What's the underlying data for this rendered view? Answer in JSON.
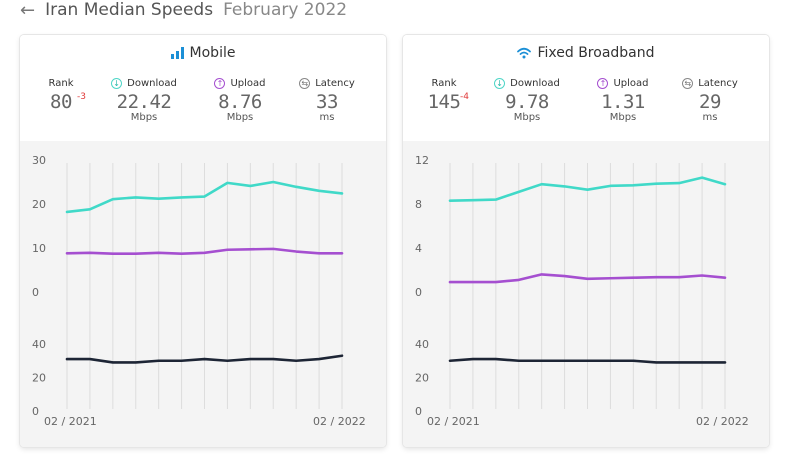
{
  "header": {
    "title": "Iran Median Speeds",
    "date": "February 2022"
  },
  "colors": {
    "download": "#40d9c8",
    "upload": "#a54fd0",
    "latency": "#1d2535",
    "accent_blue": "#1b8fd6"
  },
  "cards": [
    {
      "id": "mobile",
      "title": "Mobile",
      "icon": "signal-bars-icon",
      "rank_label": "Rank",
      "rank": "80",
      "rank_change": "-3",
      "download_label": "Download",
      "download": "22.42",
      "download_unit": "Mbps",
      "upload_label": "Upload",
      "upload": "8.76",
      "upload_unit": "Mbps",
      "latency_label": "Latency",
      "latency": "33",
      "latency_unit": "ms",
      "x_start": "02 / 2021",
      "x_end": "02 / 2022"
    },
    {
      "id": "fixed",
      "title": "Fixed Broadband",
      "icon": "wifi-icon",
      "rank_label": "Rank",
      "rank": "145",
      "rank_change": "-4",
      "download_label": "Download",
      "download": "9.78",
      "download_unit": "Mbps",
      "upload_label": "Upload",
      "upload": "1.31",
      "upload_unit": "Mbps",
      "latency_label": "Latency",
      "latency": "29",
      "latency_unit": "ms",
      "x_start": "02 / 2021",
      "x_end": "02 / 2022"
    }
  ],
  "chart_data": [
    {
      "type": "line",
      "panel": "Mobile speeds",
      "x": [
        "02/2021",
        "03/2021",
        "04/2021",
        "05/2021",
        "06/2021",
        "07/2021",
        "08/2021",
        "09/2021",
        "10/2021",
        "11/2021",
        "12/2021",
        "01/2022",
        "02/2022"
      ],
      "series": [
        {
          "name": "Download",
          "values": [
            18.2,
            18.8,
            21.1,
            21.5,
            21.2,
            21.5,
            21.7,
            24.8,
            24.1,
            25.0,
            23.9,
            23.0,
            22.4
          ]
        },
        {
          "name": "Upload",
          "values": [
            8.8,
            8.9,
            8.7,
            8.7,
            8.9,
            8.7,
            8.9,
            9.6,
            9.7,
            9.8,
            9.2,
            8.8,
            8.8
          ]
        }
      ],
      "ylim": [
        0,
        30
      ],
      "yticks": [
        0,
        10,
        20,
        30
      ]
    },
    {
      "type": "line",
      "panel": "Mobile latency",
      "x": [
        "02/2021",
        "03/2021",
        "04/2021",
        "05/2021",
        "06/2021",
        "07/2021",
        "08/2021",
        "09/2021",
        "10/2021",
        "11/2021",
        "12/2021",
        "01/2022",
        "02/2022"
      ],
      "series": [
        {
          "name": "Latency",
          "values": [
            31,
            31,
            29,
            29,
            30,
            30,
            31,
            30,
            31,
            31,
            30,
            31,
            33
          ]
        }
      ],
      "ylim": [
        0,
        40
      ],
      "yticks": [
        0,
        20,
        40
      ]
    },
    {
      "type": "line",
      "panel": "Fixed Broadband speeds",
      "x": [
        "02/2021",
        "03/2021",
        "04/2021",
        "05/2021",
        "06/2021",
        "07/2021",
        "08/2021",
        "09/2021",
        "10/2021",
        "11/2021",
        "12/2021",
        "01/2022",
        "02/2022"
      ],
      "series": [
        {
          "name": "Download",
          "values": [
            8.3,
            8.35,
            8.4,
            9.1,
            9.8,
            9.6,
            9.3,
            9.65,
            9.7,
            9.85,
            9.9,
            10.4,
            9.8
          ]
        },
        {
          "name": "Upload",
          "values": [
            0.9,
            0.9,
            0.9,
            1.1,
            1.6,
            1.45,
            1.2,
            1.25,
            1.3,
            1.35,
            1.35,
            1.5,
            1.3
          ]
        }
      ],
      "ylim": [
        0,
        12
      ],
      "yticks": [
        0,
        4,
        8,
        12
      ]
    },
    {
      "type": "line",
      "panel": "Fixed Broadband latency",
      "x": [
        "02/2021",
        "03/2021",
        "04/2021",
        "05/2021",
        "06/2021",
        "07/2021",
        "08/2021",
        "09/2021",
        "10/2021",
        "11/2021",
        "12/2021",
        "01/2022",
        "02/2022"
      ],
      "series": [
        {
          "name": "Latency",
          "values": [
            30,
            31,
            31,
            30,
            30,
            30,
            30,
            30,
            30,
            29,
            29,
            29,
            29
          ]
        }
      ],
      "ylim": [
        0,
        40
      ],
      "yticks": [
        0,
        20,
        40
      ]
    }
  ]
}
